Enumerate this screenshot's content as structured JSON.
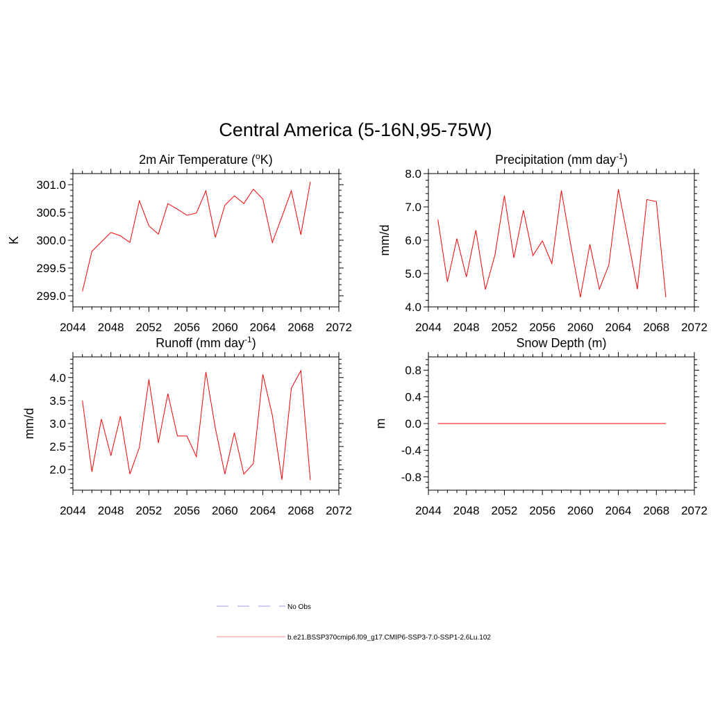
{
  "figure": {
    "title": "Central America (5-16N,95-75W)"
  },
  "legend": {
    "entries": [
      {
        "label": "No Obs",
        "style": "dashed",
        "color": "#9999dd"
      },
      {
        "label": "b.e21.BSSP370cmip6.f09_g17.CMIP6-SSP3-7.0-SSP1-2.6Lu.102",
        "style": "solid",
        "color": "#ff8888"
      }
    ]
  },
  "chart_data": [
    {
      "type": "line",
      "title": "2m Air Temperature (",
      "title_sup": "o",
      "title_suffix": "K)",
      "ylabel": "K",
      "xlim": [
        2044,
        2072
      ],
      "xticks": [
        2044,
        2048,
        2052,
        2056,
        2060,
        2064,
        2068,
        2072
      ],
      "ylim": [
        298.8,
        301.2
      ],
      "yticks": [
        299.0,
        299.5,
        300.0,
        300.5,
        301.0
      ],
      "ytick_labels": [
        "299.0",
        "299.5",
        "300.0",
        "300.5",
        "301.0"
      ],
      "series": [
        {
          "color": "#ff0000",
          "x": [
            2045,
            2046,
            2047,
            2048,
            2049,
            2050,
            2051,
            2052,
            2053,
            2054,
            2055,
            2056,
            2057,
            2058,
            2059,
            2060,
            2061,
            2062,
            2063,
            2064,
            2065,
            2066,
            2067,
            2068,
            2069
          ],
          "y": [
            299.08,
            299.8,
            299.97,
            300.14,
            300.08,
            299.96,
            300.71,
            300.26,
            300.11,
            300.66,
            300.56,
            300.45,
            300.49,
            300.89,
            300.05,
            300.63,
            300.8,
            300.66,
            300.92,
            300.74,
            299.96,
            300.42,
            300.89,
            300.1,
            301.05
          ]
        }
      ]
    },
    {
      "type": "line",
      "title": "Precipitation (mm day",
      "title_sup": "-1",
      "title_suffix": ")",
      "ylabel": "mm/d",
      "xlim": [
        2044,
        2072
      ],
      "xticks": [
        2044,
        2048,
        2052,
        2056,
        2060,
        2064,
        2068,
        2072
      ],
      "ylim": [
        4.0,
        8.0
      ],
      "yticks": [
        4.0,
        5.0,
        6.0,
        7.0,
        8.0
      ],
      "ytick_labels": [
        "4.0",
        "5.0",
        "6.0",
        "7.0",
        "8.0"
      ],
      "series": [
        {
          "color": "#ff0000",
          "x": [
            2045,
            2046,
            2047,
            2048,
            2049,
            2050,
            2051,
            2052,
            2053,
            2054,
            2055,
            2056,
            2057,
            2058,
            2059,
            2060,
            2061,
            2062,
            2063,
            2064,
            2065,
            2066,
            2067,
            2068,
            2069
          ],
          "y": [
            6.62,
            4.75,
            6.05,
            4.9,
            6.3,
            4.52,
            5.55,
            7.34,
            5.47,
            6.9,
            5.54,
            5.98,
            5.3,
            7.49,
            5.84,
            4.29,
            5.88,
            4.53,
            5.26,
            7.53,
            6.05,
            4.53,
            7.22,
            7.16,
            4.29
          ]
        }
      ]
    },
    {
      "type": "line",
      "title": "Runoff (mm day",
      "title_sup": "-1",
      "title_suffix": ")",
      "ylabel": "mm/d",
      "xlim": [
        2044,
        2072
      ],
      "xticks": [
        2044,
        2048,
        2052,
        2056,
        2060,
        2064,
        2068,
        2072
      ],
      "ylim": [
        1.55,
        4.45
      ],
      "yticks": [
        2.0,
        2.5,
        3.0,
        3.5,
        4.0
      ],
      "ytick_labels": [
        "2.0",
        "2.5",
        "3.0",
        "3.5",
        "4.0"
      ],
      "series": [
        {
          "color": "#ff0000",
          "x": [
            2045,
            2046,
            2047,
            2048,
            2049,
            2050,
            2051,
            2052,
            2053,
            2054,
            2055,
            2056,
            2057,
            2058,
            2059,
            2060,
            2061,
            2062,
            2063,
            2064,
            2065,
            2066,
            2067,
            2068,
            2069
          ],
          "y": [
            3.5,
            1.95,
            3.1,
            2.3,
            3.16,
            1.9,
            2.48,
            3.96,
            2.58,
            3.65,
            2.73,
            2.73,
            2.28,
            4.12,
            2.9,
            1.9,
            2.8,
            1.9,
            2.13,
            4.07,
            3.18,
            1.78,
            3.77,
            4.15,
            1.77
          ]
        }
      ]
    },
    {
      "type": "line",
      "title": "Snow Depth (m)",
      "title_sup": "",
      "title_suffix": "",
      "ylabel": "m",
      "xlim": [
        2044,
        2072
      ],
      "xticks": [
        2044,
        2048,
        2052,
        2056,
        2060,
        2064,
        2068,
        2072
      ],
      "ylim": [
        -1.0,
        1.0
      ],
      "yticks": [
        -0.8,
        -0.4,
        0.0,
        0.4,
        0.8
      ],
      "ytick_labels": [
        "-0.8",
        "-0.4",
        "0.0",
        "0.4",
        "0.8"
      ],
      "series": [
        {
          "color": "#ff0000",
          "x": [
            2045,
            2046,
            2047,
            2048,
            2049,
            2050,
            2051,
            2052,
            2053,
            2054,
            2055,
            2056,
            2057,
            2058,
            2059,
            2060,
            2061,
            2062,
            2063,
            2064,
            2065,
            2066,
            2067,
            2068,
            2069
          ],
          "y": [
            0,
            0,
            0,
            0,
            0,
            0,
            0,
            0,
            0,
            0,
            0,
            0,
            0,
            0,
            0,
            0,
            0,
            0,
            0,
            0,
            0,
            0,
            0,
            0,
            0
          ]
        }
      ]
    }
  ]
}
